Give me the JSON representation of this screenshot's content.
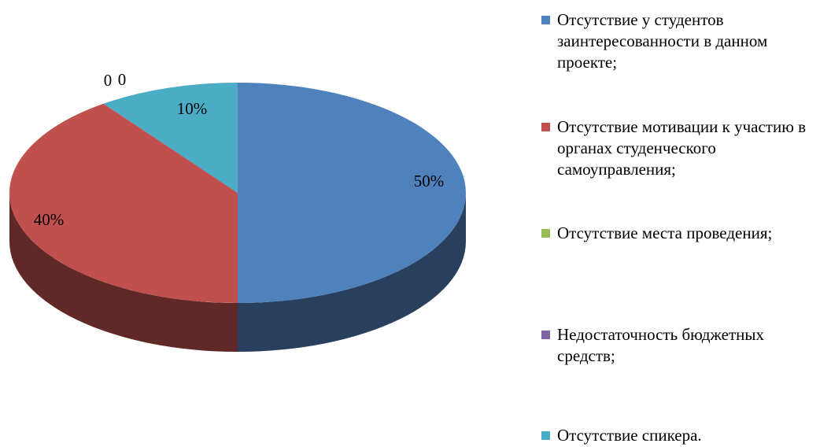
{
  "chart_data": {
    "type": "pie",
    "categories": [
      "Отсутствие у студентов заинтересованности в данном проекте;",
      "Отсутствие мотивации к участию в органах студенческого самоуправления;",
      "Отсутствие места проведения;",
      "Недостаточность бюджетных средств;",
      "Отсутствие спикера."
    ],
    "values": [
      50,
      40,
      0,
      0,
      10
    ],
    "value_labels": [
      "50%",
      "40%",
      "0",
      "0",
      "10%"
    ],
    "colors": [
      "#4f81bd",
      "#c0504d",
      "#9bbb59",
      "#8064a2",
      "#4bacc6"
    ],
    "legend": "right"
  }
}
